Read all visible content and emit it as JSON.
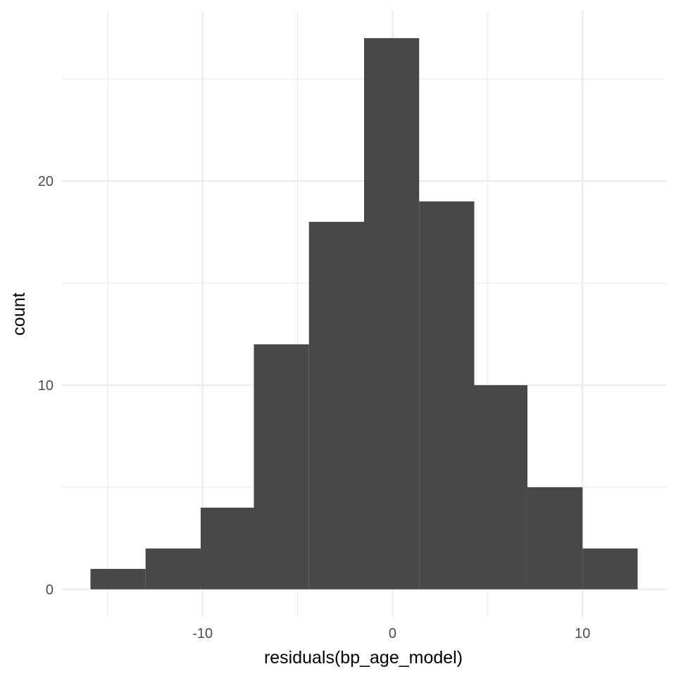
{
  "chart_data": {
    "type": "bar",
    "title": "",
    "xlabel": "residuals(bp_age_model)",
    "ylabel": "count",
    "bins": [
      {
        "x0": -15.9,
        "x1": -13.0,
        "count": 1
      },
      {
        "x0": -13.0,
        "x1": -10.1,
        "count": 2
      },
      {
        "x0": -10.1,
        "x1": -7.3,
        "count": 4
      },
      {
        "x0": -7.3,
        "x1": -4.4,
        "count": 12
      },
      {
        "x0": -4.4,
        "x1": -1.5,
        "count": 18
      },
      {
        "x0": -1.5,
        "x1": 1.4,
        "count": 27
      },
      {
        "x0": 1.4,
        "x1": 4.3,
        "count": 19
      },
      {
        "x0": 4.3,
        "x1": 7.1,
        "count": 10
      },
      {
        "x0": 7.1,
        "x1": 10.0,
        "count": 5
      },
      {
        "x0": 10.0,
        "x1": 12.9,
        "count": 2
      }
    ],
    "xlim": [
      -17.4,
      14.4
    ],
    "ylim": [
      -1.35,
      28.35
    ],
    "x_ticks": [
      -10,
      0,
      10
    ],
    "x_tick_labels": [
      "-10",
      "0",
      "10"
    ],
    "x_minor_gridlines": [
      -15,
      -5,
      5
    ],
    "y_ticks": [
      0,
      10,
      20
    ],
    "y_tick_labels": [
      "0",
      "10",
      "20"
    ],
    "y_minor_gridlines": [
      5,
      15,
      25
    ],
    "grid": true,
    "bar_color": "#484848",
    "grid_color": "#ebebeb",
    "legend": "none"
  }
}
